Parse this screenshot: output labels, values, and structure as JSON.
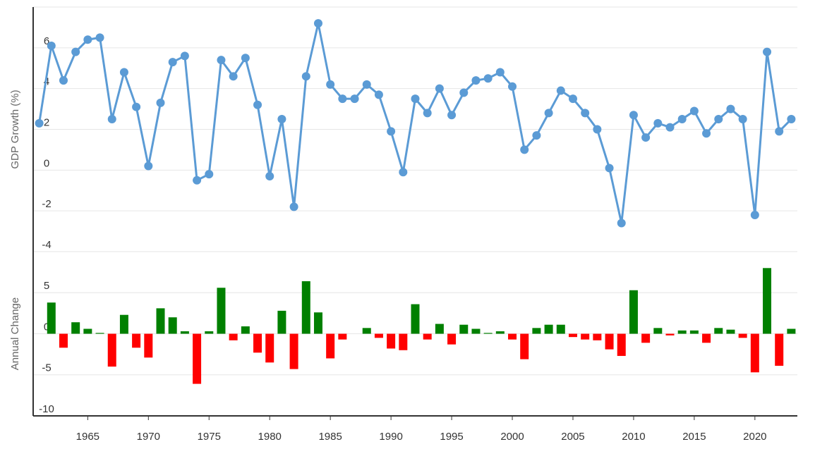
{
  "chart_data": [
    {
      "type": "line",
      "y_label": "GDP Growth (%)",
      "color": "#5b9bd5",
      "x": [
        1961,
        1962,
        1963,
        1964,
        1965,
        1966,
        1967,
        1968,
        1969,
        1970,
        1971,
        1972,
        1973,
        1974,
        1975,
        1976,
        1977,
        1978,
        1979,
        1980,
        1981,
        1982,
        1983,
        1984,
        1985,
        1986,
        1987,
        1988,
        1989,
        1990,
        1991,
        1992,
        1993,
        1994,
        1995,
        1996,
        1997,
        1998,
        1999,
        2000,
        2001,
        2002,
        2003,
        2004,
        2005,
        2006,
        2007,
        2008,
        2009,
        2010,
        2011,
        2012,
        2013,
        2014,
        2015,
        2016,
        2017,
        2018,
        2019,
        2020,
        2021,
        2022,
        2023
      ],
      "values": [
        2.3,
        6.1,
        4.4,
        5.8,
        6.4,
        6.5,
        2.5,
        4.8,
        3.1,
        0.2,
        3.3,
        5.3,
        5.6,
        -0.5,
        -0.2,
        5.4,
        4.6,
        5.5,
        3.2,
        -0.3,
        2.5,
        -1.8,
        4.6,
        7.2,
        4.2,
        3.5,
        3.5,
        4.2,
        3.7,
        1.9,
        -0.1,
        3.5,
        2.8,
        4.0,
        2.7,
        3.8,
        4.4,
        4.5,
        4.8,
        4.1,
        1.0,
        1.7,
        2.8,
        3.9,
        3.5,
        2.8,
        2.0,
        0.1,
        -2.6,
        2.7,
        1.6,
        2.3,
        2.1,
        2.5,
        2.9,
        1.8,
        2.5,
        3.0,
        2.5,
        -2.2,
        5.8,
        1.9,
        2.5
      ],
      "xlim": [
        1960.5,
        2023.5
      ],
      "ylim": [
        -4,
        8
      ],
      "yticks": [
        -4,
        -2,
        0,
        2,
        4,
        6
      ],
      "grid": true
    },
    {
      "type": "bar",
      "y_label": "Annual Change",
      "positive_color": "#008000",
      "negative_color": "#ff0000",
      "x": [
        1962,
        1963,
        1964,
        1965,
        1966,
        1967,
        1968,
        1969,
        1970,
        1971,
        1972,
        1973,
        1974,
        1975,
        1976,
        1977,
        1978,
        1979,
        1980,
        1981,
        1982,
        1983,
        1984,
        1985,
        1986,
        1987,
        1988,
        1989,
        1990,
        1991,
        1992,
        1993,
        1994,
        1995,
        1996,
        1997,
        1998,
        1999,
        2000,
        2001,
        2002,
        2003,
        2004,
        2005,
        2006,
        2007,
        2008,
        2009,
        2010,
        2011,
        2012,
        2013,
        2014,
        2015,
        2016,
        2017,
        2018,
        2019,
        2020,
        2021,
        2022,
        2023
      ],
      "values": [
        3.8,
        -1.7,
        1.4,
        0.6,
        0.1,
        -4.0,
        2.3,
        -1.7,
        -2.9,
        3.1,
        2.0,
        0.3,
        -6.1,
        0.3,
        5.6,
        -0.8,
        0.9,
        -2.3,
        -3.5,
        2.8,
        -4.3,
        6.4,
        2.6,
        -3.0,
        -0.7,
        0.0,
        0.7,
        -0.5,
        -1.8,
        -2.0,
        3.6,
        -0.7,
        1.2,
        -1.3,
        1.1,
        0.6,
        0.1,
        0.3,
        -0.7,
        -3.1,
        0.7,
        1.1,
        1.1,
        -0.4,
        -0.7,
        -0.8,
        -1.9,
        -2.7,
        5.3,
        -1.1,
        0.7,
        -0.2,
        0.4,
        0.4,
        -1.1,
        0.7,
        0.5,
        -0.5,
        -4.7,
        8.0,
        -3.9,
        0.6
      ],
      "xlim": [
        1960.5,
        2023.5
      ],
      "ylim": [
        -10,
        10
      ],
      "yticks": [
        -10,
        -5,
        0,
        5
      ],
      "grid": true,
      "xticks": [
        1965,
        1970,
        1975,
        1980,
        1985,
        1990,
        1995,
        2000,
        2005,
        2010,
        2015,
        2020
      ]
    }
  ]
}
